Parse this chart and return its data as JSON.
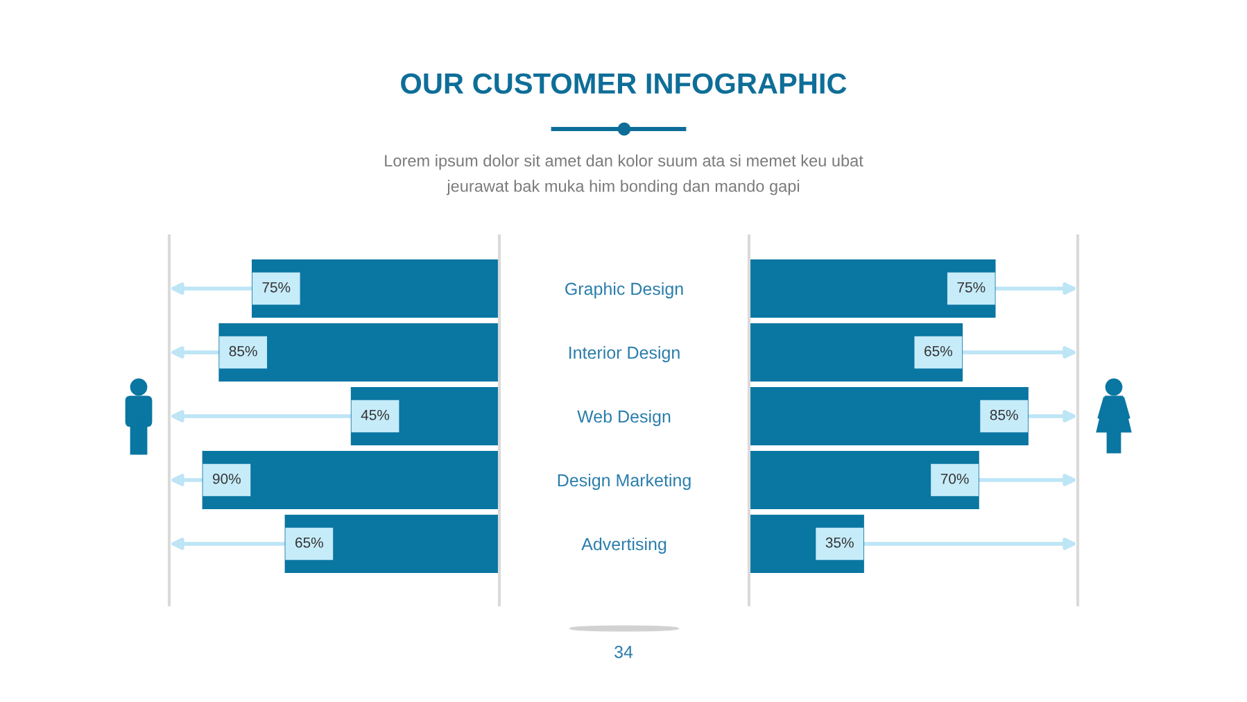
{
  "chart_data": [
    {
      "type": "bar",
      "orientation": "horizontal",
      "title": "OUR CUSTOMER INFOGRAPHIC",
      "subtitle": "Lorem ipsum dolor sit amet dan kolor suum ata si memet keu ubat jeurawat bak muka him bonding dan mando gapi",
      "annotations": [
        "34"
      ],
      "categories": [
        "Graphic Design",
        "Interior Design",
        "Web Design",
        "Design Marketing",
        "Advertising"
      ],
      "values": [
        75,
        85,
        45,
        90,
        65
      ],
      "value_labels": [
        "75%",
        "85%",
        "45%",
        "90%",
        "65%"
      ],
      "color": "#0a76a2",
      "xlim": [
        100,
        0
      ],
      "tick_labels": "y"
    },
    {
      "type": "bar",
      "orientation": "horizontal",
      "categories": [
        null,
        null,
        null,
        null,
        null
      ],
      "values": [
        75,
        65,
        85,
        70,
        35
      ],
      "value_labels": [
        "75%",
        "65%",
        "85%",
        "70%",
        "35%"
      ],
      "color": "#0a76a2",
      "xlim": [
        0,
        100
      ]
    }
  ]
}
